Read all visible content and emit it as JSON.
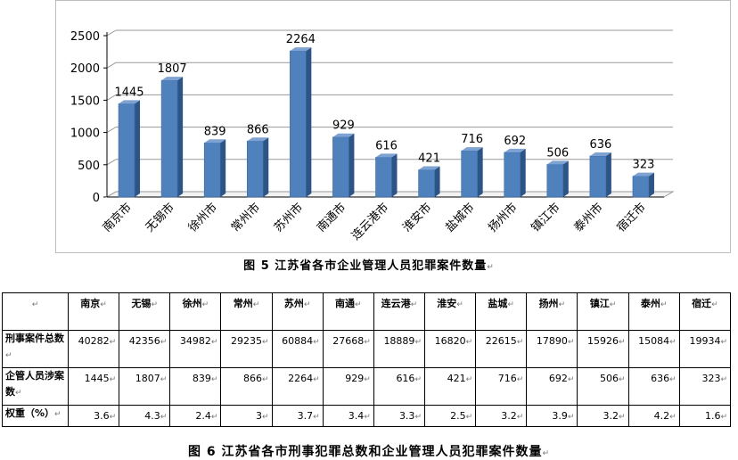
{
  "chart_data": {
    "type": "bar",
    "title": "图 5  江苏省各市企业管理人员犯罪案件数量",
    "categories": [
      "南京市",
      "无锡市",
      "徐州市",
      "常州市",
      "苏州市",
      "南通市",
      "连云港市",
      "淮安市",
      "盐城市",
      "扬州市",
      "镇江市",
      "泰州市",
      "宿迁市"
    ],
    "values": [
      1445,
      1807,
      839,
      866,
      2264,
      929,
      616,
      421,
      716,
      692,
      506,
      636,
      323
    ],
    "yticks": [
      "0",
      "500",
      "1000",
      "1500",
      "2000",
      "2500"
    ],
    "ylim": [
      0,
      2500
    ],
    "grid": true,
    "legend": "none",
    "bar_color": "#4f81bd"
  },
  "table": {
    "headers": [
      "南京",
      "无锡",
      "徐州",
      "常州",
      "苏州",
      "南通",
      "连云港",
      "淮安",
      "盐城",
      "扬州",
      "镇江",
      "泰州",
      "宿迁"
    ],
    "rows": [
      {
        "label": "刑事案件总数",
        "values": [
          "40282",
          "42356",
          "34982",
          "29235",
          "60884",
          "27668",
          "18889",
          "16820",
          "22615",
          "17890",
          "15926",
          "15084",
          "19934"
        ]
      },
      {
        "label": "企管人员涉案数",
        "values": [
          "1445",
          "1807",
          "839",
          "866",
          "2264",
          "929",
          "616",
          "421",
          "716",
          "692",
          "506",
          "636",
          "323"
        ]
      },
      {
        "label": "权重（%）",
        "values": [
          "3.6",
          "4.3",
          "2.4",
          "3",
          "3.7",
          "3.4",
          "3.3",
          "2.5",
          "3.2",
          "3.9",
          "3.2",
          "4.2",
          "1.6"
        ]
      }
    ],
    "caption": "图 6 江苏省各市刑事犯罪总数和企业管理人员犯罪案件数量"
  },
  "paragraph_mark": "↵"
}
